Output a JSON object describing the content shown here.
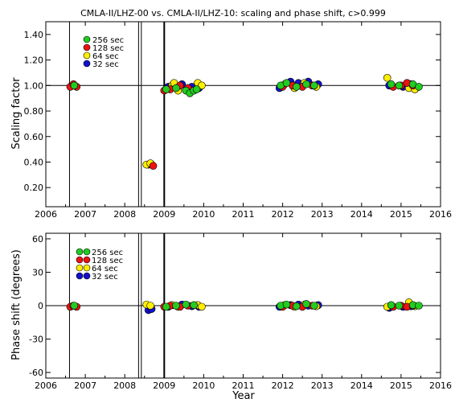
{
  "chart_data": [
    {
      "type": "scatter",
      "title": "CMLA-II/LHZ-00 vs. CMLA-II/LHZ-10: scaling and phase shift, c>0.999",
      "xlabel": "",
      "ylabel": "Scaling factor",
      "xlim": [
        2006,
        2016
      ],
      "ylim": [
        0.05,
        1.5
      ],
      "x_ticks": [
        "2006",
        "2007",
        "2008",
        "2009",
        "2010",
        "2011",
        "2012",
        "2013",
        "2014",
        "2015",
        "2016"
      ],
      "y_ticks": [
        "0.20",
        "0.40",
        "0.60",
        "0.80",
        "1.00",
        "1.20",
        "1.40"
      ],
      "y_tick_values": [
        0.2,
        0.4,
        0.6,
        0.8,
        1.0,
        1.2,
        1.4
      ],
      "reference_line_y": 1.0,
      "vertical_lines_x": [
        2006.6,
        2008.35,
        2008.42,
        2009.0
      ],
      "legend_position": "top-left",
      "series": [
        {
          "name": "256 sec",
          "color": "#22cc22",
          "points": [
            [
              2006.72,
              1.0
            ],
            [
              2009.05,
              0.97
            ],
            [
              2009.3,
              0.98
            ],
            [
              2009.55,
              0.96
            ],
            [
              2009.65,
              0.94
            ],
            [
              2009.75,
              0.96
            ],
            [
              2009.82,
              0.97
            ],
            [
              2011.95,
              1.0
            ],
            [
              2012.1,
              1.02
            ],
            [
              2012.35,
              0.99
            ],
            [
              2012.6,
              1.01
            ],
            [
              2012.8,
              1.0
            ],
            [
              2014.75,
              1.01
            ],
            [
              2014.95,
              1.0
            ],
            [
              2015.3,
              1.01
            ],
            [
              2015.45,
              0.99
            ]
          ]
        },
        {
          "name": "128 sec",
          "color": "#ee1111",
          "points": [
            [
              2006.62,
              0.99
            ],
            [
              2006.7,
              1.01
            ],
            [
              2006.78,
              0.99
            ],
            [
              2008.72,
              0.37
            ],
            [
              2009.0,
              0.96
            ],
            [
              2009.15,
              0.97
            ],
            [
              2009.4,
              1.0
            ],
            [
              2009.6,
              0.98
            ],
            [
              2012.0,
              0.99
            ],
            [
              2012.25,
              1.0
            ],
            [
              2012.5,
              0.99
            ],
            [
              2012.75,
              1.0
            ],
            [
              2014.8,
              0.99
            ],
            [
              2015.0,
              1.0
            ],
            [
              2015.15,
              1.02
            ],
            [
              2015.3,
              1.0
            ]
          ]
        },
        {
          "name": " 64 sec",
          "color": "#ffee00",
          "points": [
            [
              2008.55,
              0.38
            ],
            [
              2008.65,
              0.39
            ],
            [
              2009.2,
              1.0
            ],
            [
              2009.25,
              1.02
            ],
            [
              2009.35,
              0.96
            ],
            [
              2009.85,
              1.02
            ],
            [
              2009.95,
              1.0
            ],
            [
              2012.05,
              1.01
            ],
            [
              2012.3,
              0.98
            ],
            [
              2012.55,
              1.02
            ],
            [
              2012.85,
              0.99
            ],
            [
              2014.65,
              1.06
            ],
            [
              2015.2,
              0.98
            ],
            [
              2015.35,
              0.97
            ]
          ]
        },
        {
          "name": " 32 sec",
          "color": "#1111cc",
          "points": [
            [
              2008.6,
              0.38
            ],
            [
              2008.68,
              0.38
            ],
            [
              2009.1,
              0.99
            ],
            [
              2009.45,
              1.01
            ],
            [
              2009.7,
              0.99
            ],
            [
              2009.88,
              0.98
            ],
            [
              2011.92,
              0.98
            ],
            [
              2012.2,
              1.03
            ],
            [
              2012.4,
              1.02
            ],
            [
              2012.65,
              1.03
            ],
            [
              2012.9,
              1.01
            ],
            [
              2014.7,
              1.0
            ],
            [
              2015.05,
              0.99
            ],
            [
              2015.25,
              1.01
            ]
          ]
        }
      ]
    },
    {
      "type": "scatter",
      "title": "",
      "xlabel": "Year",
      "ylabel": "Phase shift (degrees)",
      "xlim": [
        2006,
        2016
      ],
      "ylim": [
        -65,
        65
      ],
      "x_ticks": [
        "2006",
        "2007",
        "2008",
        "2009",
        "2010",
        "2011",
        "2012",
        "2013",
        "2014",
        "2015",
        "2016"
      ],
      "y_ticks": [
        "-60",
        "-30",
        "0",
        "30",
        "60"
      ],
      "y_tick_values": [
        -60,
        -30,
        0,
        30,
        60
      ],
      "reference_line_y": 0,
      "vertical_lines_x": [
        2006.6,
        2008.35,
        2008.42,
        2009.0
      ],
      "legend_position": "top-left",
      "series": [
        {
          "name": "256 sec",
          "color": "#22cc22",
          "points": [
            [
              2006.72,
              0.0
            ],
            [
              2009.05,
              -1.0
            ],
            [
              2009.3,
              0.0
            ],
            [
              2009.55,
              1.0
            ],
            [
              2009.75,
              0.5
            ],
            [
              2011.95,
              0.0
            ],
            [
              2012.1,
              1.0
            ],
            [
              2012.35,
              -0.5
            ],
            [
              2012.6,
              1.5
            ],
            [
              2012.8,
              0.0
            ],
            [
              2014.75,
              0.5
            ],
            [
              2014.95,
              0.0
            ],
            [
              2015.3,
              0.5
            ],
            [
              2015.45,
              0.0
            ]
          ]
        },
        {
          "name": "128 sec",
          "color": "#ee1111",
          "points": [
            [
              2006.62,
              -1.0
            ],
            [
              2006.7,
              0.0
            ],
            [
              2006.78,
              -1.0
            ],
            [
              2009.0,
              -1.0
            ],
            [
              2009.15,
              0.0
            ],
            [
              2009.4,
              -1.0
            ],
            [
              2009.6,
              0.0
            ],
            [
              2012.0,
              -1.0
            ],
            [
              2012.25,
              0.0
            ],
            [
              2012.5,
              -1.0
            ],
            [
              2012.75,
              0.0
            ],
            [
              2014.8,
              -1.0
            ],
            [
              2015.0,
              0.0
            ],
            [
              2015.15,
              -1.0
            ],
            [
              2015.3,
              0.0
            ]
          ]
        },
        {
          "name": " 64 sec",
          "color": "#ffee00",
          "points": [
            [
              2008.55,
              1.0
            ],
            [
              2008.65,
              0.0
            ],
            [
              2009.2,
              0.5
            ],
            [
              2009.35,
              -1.0
            ],
            [
              2009.85,
              0.5
            ],
            [
              2009.95,
              -1.0
            ],
            [
              2012.05,
              0.5
            ],
            [
              2012.3,
              -1.0
            ],
            [
              2012.55,
              1.0
            ],
            [
              2012.85,
              -0.5
            ],
            [
              2014.65,
              -1.0
            ],
            [
              2015.2,
              3.0
            ],
            [
              2015.35,
              -0.5
            ]
          ]
        },
        {
          "name": " 32 sec",
          "color": "#1111cc",
          "points": [
            [
              2008.6,
              -4.0
            ],
            [
              2008.68,
              -3.0
            ],
            [
              2009.1,
              -1.0
            ],
            [
              2009.45,
              1.0
            ],
            [
              2009.7,
              -0.5
            ],
            [
              2009.88,
              -1.0
            ],
            [
              2011.92,
              -1.0
            ],
            [
              2012.2,
              0.5
            ],
            [
              2012.4,
              1.0
            ],
            [
              2012.65,
              0.0
            ],
            [
              2012.9,
              0.5
            ],
            [
              2014.7,
              -2.0
            ],
            [
              2015.05,
              -1.0
            ],
            [
              2015.25,
              -0.5
            ]
          ]
        }
      ]
    }
  ]
}
